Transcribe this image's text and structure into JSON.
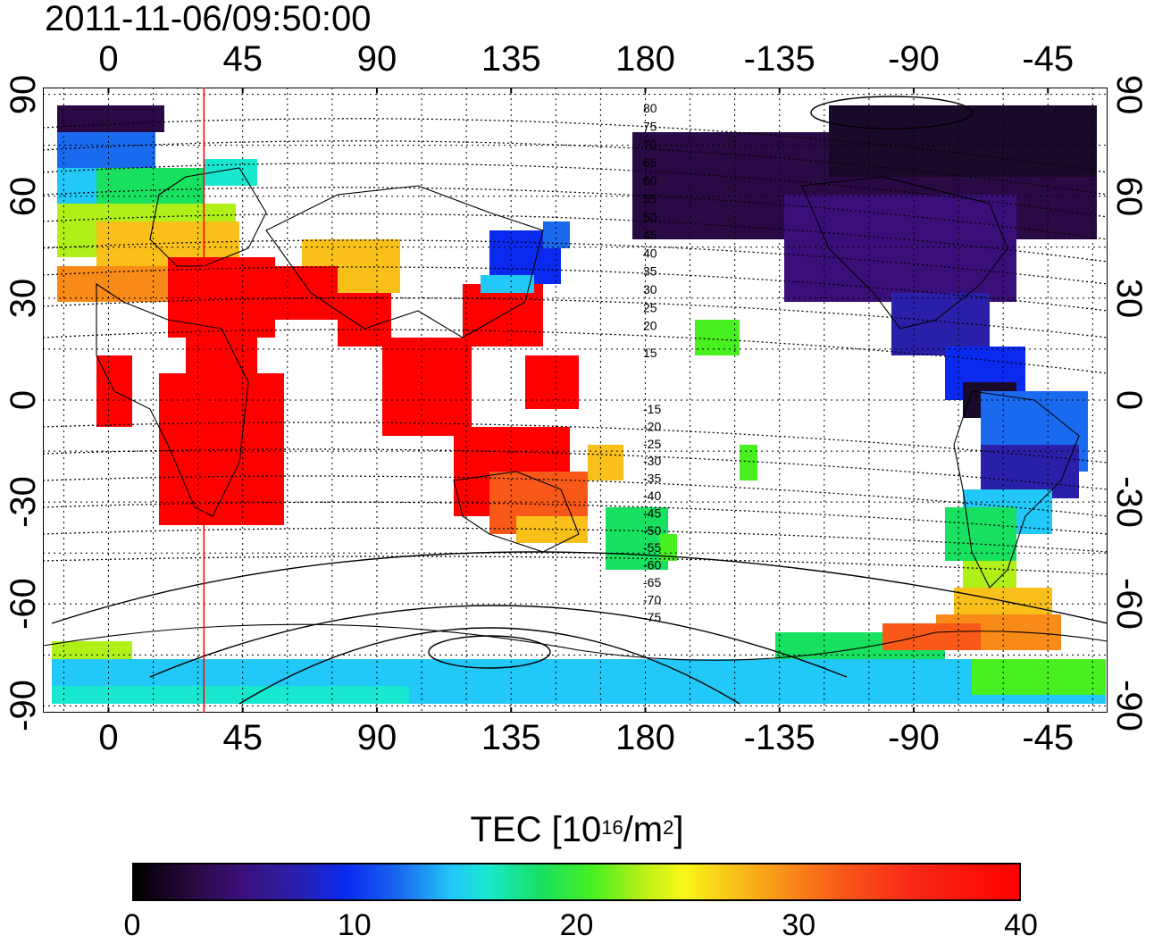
{
  "timestamp": "2011-11-06/09:50:00",
  "axes": {
    "longitude_ticks": [
      "0",
      "45",
      "90",
      "135",
      "180",
      "-135",
      "-90",
      "-45"
    ],
    "longitude_values": [
      0,
      45,
      90,
      135,
      180,
      225,
      270,
      315
    ],
    "latitude_ticks_left": [
      "90",
      "60",
      "30",
      "0",
      "-30",
      "-60",
      "-90"
    ],
    "latitude_ticks_right": [
      "90",
      "60",
      "30",
      "0",
      "-30",
      "-60",
      "-90"
    ],
    "latitude_values": [
      90,
      60,
      30,
      0,
      -30,
      -60,
      -90
    ],
    "lon_range": [
      -22,
      335
    ],
    "lat_range": [
      -92,
      92
    ]
  },
  "magnetic_contour_labels": [
    "80",
    "75",
    "70",
    "65",
    "60",
    "55",
    "50",
    "45",
    "40",
    "35",
    "30",
    "25",
    "20",
    "15",
    "-15",
    "-20",
    "-25",
    "-30",
    "-35",
    "-40",
    "-45",
    "-50",
    "-55",
    "-60",
    "-65",
    "-70",
    "-75"
  ],
  "terminator_longitude": 32,
  "colorbar": {
    "title": "TEC  [10",
    "title_sup1": "16",
    "title_mid": "/m",
    "title_sup2": "2",
    "title_end": "]",
    "ticks": [
      "0",
      "10",
      "20",
      "30",
      "40"
    ],
    "range": [
      0,
      40
    ]
  },
  "colors": {
    "terminator": "#ff0000",
    "low_tec": "#2a0a44",
    "high_tec": "#ff0000"
  }
}
